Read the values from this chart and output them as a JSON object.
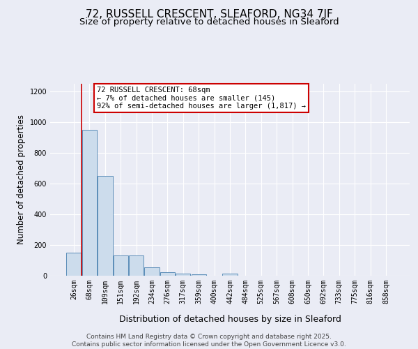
{
  "title": "72, RUSSELL CRESCENT, SLEAFORD, NG34 7JF",
  "subtitle": "Size of property relative to detached houses in Sleaford",
  "xlabel": "Distribution of detached houses by size in Sleaford",
  "ylabel": "Number of detached properties",
  "categories": [
    "26sqm",
    "68sqm",
    "109sqm",
    "151sqm",
    "192sqm",
    "234sqm",
    "276sqm",
    "317sqm",
    "359sqm",
    "400sqm",
    "442sqm",
    "484sqm",
    "525sqm",
    "567sqm",
    "608sqm",
    "650sqm",
    "692sqm",
    "733sqm",
    "775sqm",
    "816sqm",
    "858sqm"
  ],
  "values": [
    150,
    950,
    650,
    130,
    130,
    55,
    25,
    12,
    8,
    0,
    12,
    0,
    0,
    0,
    0,
    0,
    0,
    0,
    0,
    0,
    0
  ],
  "bar_color": "#ccdcec",
  "bar_edge_color": "#5b8db8",
  "red_line_x": 0.5,
  "annotation_text": "72 RUSSELL CRESCENT: 68sqm\n← 7% of detached houses are smaller (145)\n92% of semi-detached houses are larger (1,817) →",
  "annotation_box_color": "#ffffff",
  "annotation_box_edge_color": "#cc0000",
  "ylim": [
    0,
    1250
  ],
  "yticks": [
    0,
    200,
    400,
    600,
    800,
    1000,
    1200
  ],
  "background_color": "#eaecf5",
  "grid_color": "#ffffff",
  "footer_line1": "Contains HM Land Registry data © Crown copyright and database right 2025.",
  "footer_line2": "Contains public sector information licensed under the Open Government Licence v3.0.",
  "title_fontsize": 11,
  "subtitle_fontsize": 9.5,
  "xlabel_fontsize": 9,
  "ylabel_fontsize": 8.5,
  "tick_fontsize": 7,
  "annotation_fontsize": 7.5,
  "footer_fontsize": 6.5
}
